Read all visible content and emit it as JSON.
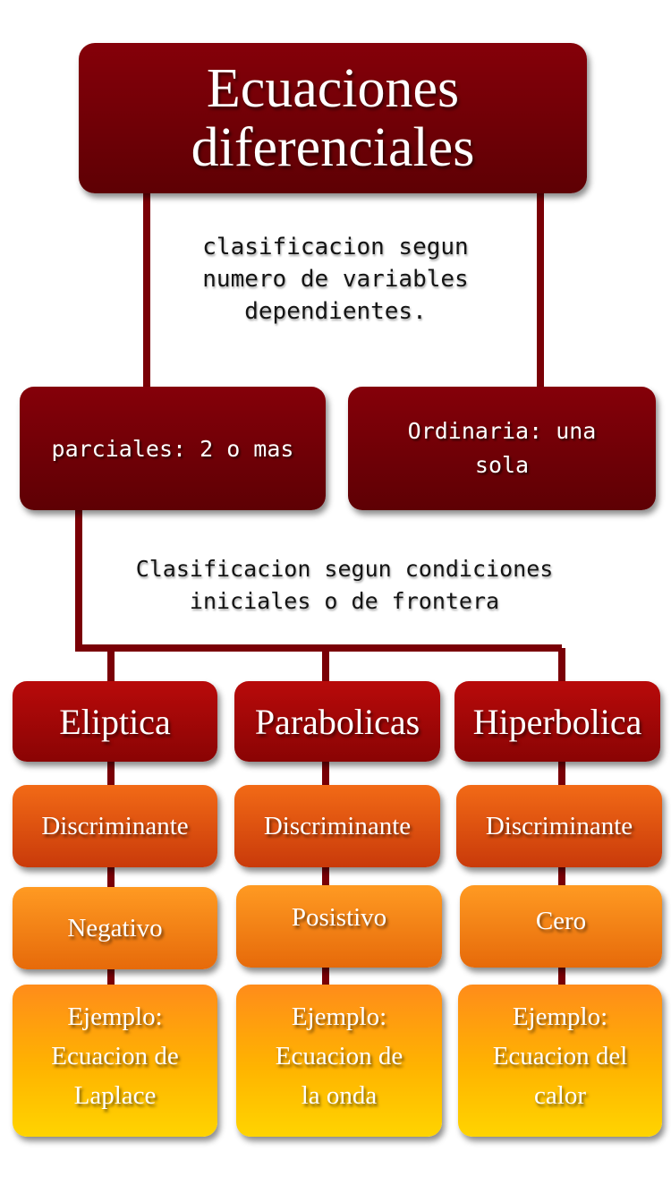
{
  "root": {
    "title_line1": "Ecuaciones",
    "title_line2": "diferenciales"
  },
  "edge_label_1": {
    "line1": "clasificacion segun",
    "line2": "numero de variables",
    "line3": "dependientes."
  },
  "level1": {
    "left": {
      "label": "parciales: 2 o mas"
    },
    "right": {
      "line1": "Ordinaria: una",
      "line2": "sola"
    }
  },
  "edge_label_2": {
    "line1": "Clasificacion segun condiciones",
    "line2": "iniciales o de frontera"
  },
  "columns": [
    {
      "type": "Eliptica",
      "discriminant": "Discriminante",
      "sign": "Negativo",
      "example": [
        "Ejemplo:",
        "Ecuacion de",
        "Laplace"
      ]
    },
    {
      "type": "Parabolicas",
      "discriminant": "Discriminante",
      "sign": "Posistivo",
      "example": [
        "Ejemplo:",
        "Ecuacion de",
        "la onda"
      ]
    },
    {
      "type": "Hiperbolica",
      "discriminant": "Discriminante",
      "sign": "Cero",
      "example": [
        "Ejemplo:",
        "Ecuacion del",
        "calor"
      ]
    }
  ],
  "colors": {
    "connector": "#7a0006",
    "root": "#6e0006",
    "level1": "#8e0008",
    "type_box": "#a80808",
    "discriminant_box": "#e0520f",
    "sign_box": "#f7880f",
    "example_box": "#ffc000"
  }
}
